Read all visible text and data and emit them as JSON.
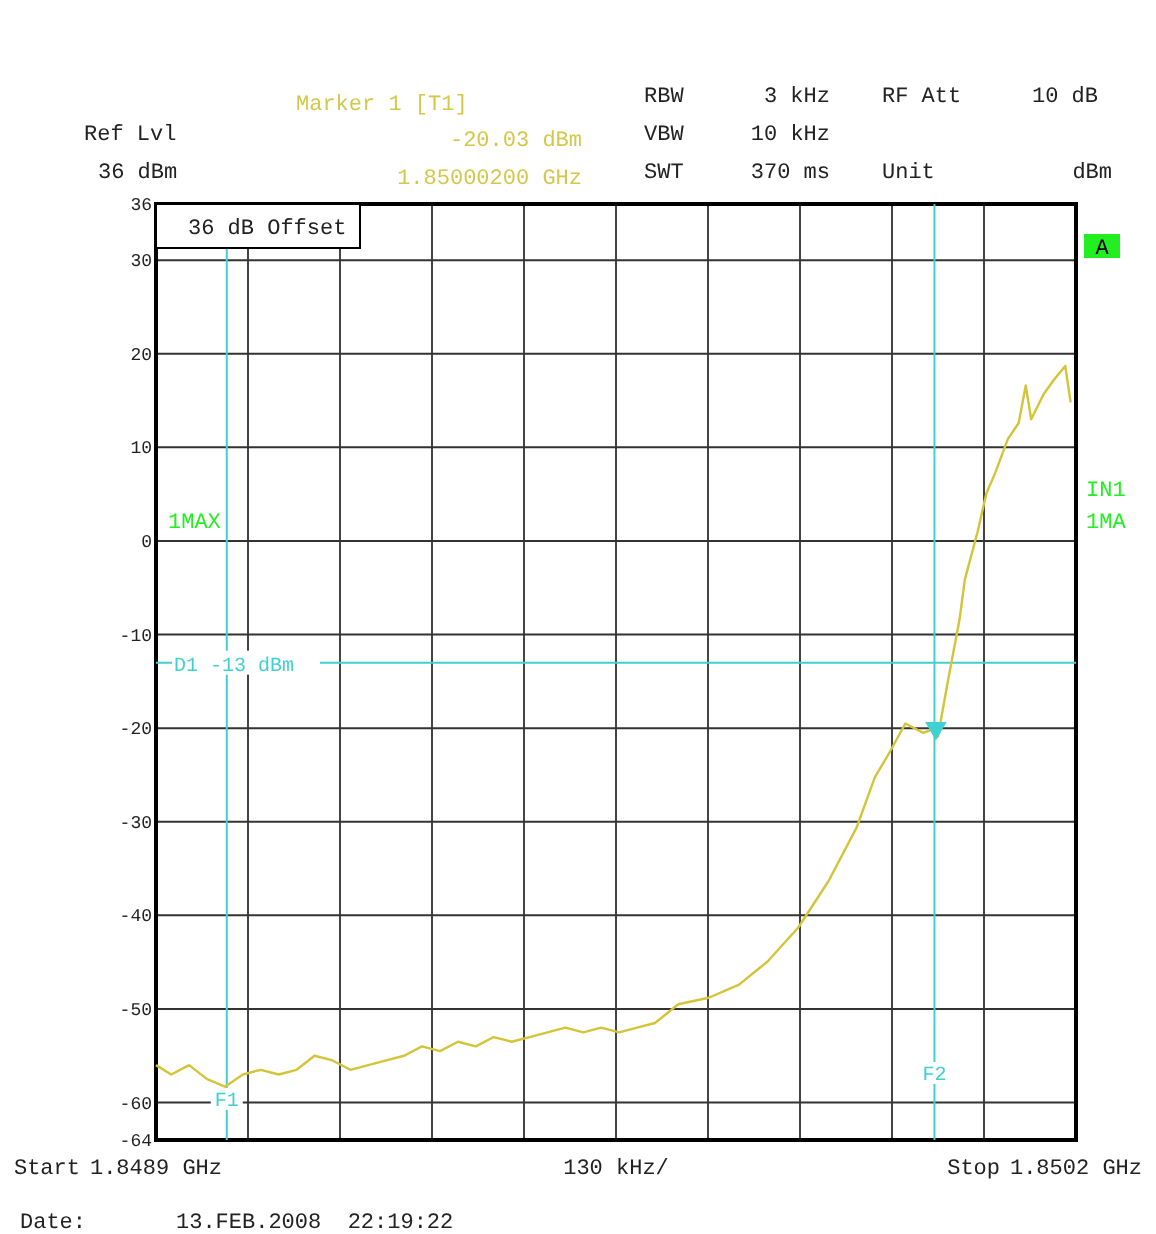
{
  "chart_data": {
    "type": "line",
    "x": [
      1.8489,
      1.8489215,
      1.8489468,
      1.8489722,
      1.8489975,
      1.8490228,
      1.8490481,
      1.8490734,
      1.8490987,
      1.849124,
      1.8491494,
      1.8491747,
      1.8492,
      1.8492253,
      1.8492506,
      1.8492759,
      1.8493013,
      1.8493266,
      1.8493519,
      1.8493772,
      1.8494025,
      1.8494278,
      1.8494532,
      1.8494785,
      1.8495038,
      1.8495291,
      1.8495544,
      1.8495797,
      1.8496051,
      1.849638,
      1.849681,
      1.849724,
      1.8497645,
      1.8498076,
      1.8498506,
      1.8498901,
      1.849916,
      1.8499335,
      1.8499589,
      1.8499842,
      1.850002,
      1.850005,
      1.8500177,
      1.8500354,
      1.850043,
      1.8500607,
      1.8500734,
      1.850086,
      1.8501038,
      1.850119,
      1.850129,
      1.8501367,
      1.8501544,
      1.8501696,
      1.8501848,
      1.8501924
    ],
    "series": [
      {
        "color": "#d4c438",
        "values": [
          -56,
          -57,
          -56,
          -57.5,
          -58.3,
          -57,
          -56.5,
          -57,
          -56.5,
          -55,
          -55.5,
          -56.5,
          -56,
          -55.5,
          -55,
          -54,
          -54.5,
          -53.5,
          -54,
          -53,
          -53.5,
          -53,
          -52.5,
          -52,
          -52.5,
          -52,
          -52.5,
          -52,
          -51.5,
          -49.5,
          -48.8,
          -47.4,
          -44.9,
          -41.3,
          -36.3,
          -30.6,
          -25.2,
          -23,
          -19.5,
          -20.5,
          -20,
          -20.9,
          -15.5,
          -8.4,
          -4.1,
          0.9,
          5.1,
          7.3,
          10.9,
          12.6,
          16.6,
          13,
          15.7,
          17.3,
          18.7,
          14.8
        ]
      },
      {
        "type": "scatter",
        "x": [
          1.850002
        ],
        "values": [
          -20
        ],
        "color": "#40d0d0",
        "marker": "triangle"
      }
    ],
    "xlim": [
      1.8489,
      1.8502
    ],
    "xticks": [
      {
        "value": 1.8489,
        "label": "1.8489 GHz"
      },
      {
        "value": 1.84903,
        "label": null
      },
      {
        "value": 1.84916,
        "label": null
      },
      {
        "value": 1.84929,
        "label": null
      },
      {
        "value": 1.84942,
        "label": null
      },
      {
        "value": 1.84955,
        "label": null
      },
      {
        "value": 1.84968,
        "label": null
      },
      {
        "value": 1.84981,
        "label": null
      },
      {
        "value": 1.84994,
        "label": null
      },
      {
        "value": 1.85007,
        "label": null
      },
      {
        "value": 1.8502,
        "label": "1.8502 GHz"
      }
    ],
    "ylim": [
      -64,
      36
    ],
    "yticks": [
      -64,
      -60,
      -50,
      -40,
      -30,
      -20,
      -10,
      0,
      10,
      20,
      30,
      36
    ],
    "xlabel": "130 kHz/",
    "grid": true,
    "marker": "none",
    "line_style": "solid",
    "ref_lines": [
      {
        "axis": "x",
        "value": 1.849,
        "label": "F1",
        "color": "#40d0d0"
      },
      {
        "axis": "x",
        "value": 1.85,
        "label": "F2",
        "color": "#40d0d0"
      },
      {
        "axis": "y",
        "value": -13,
        "label": "D1 -13 dBm",
        "color": "#40d0d0"
      }
    ],
    "annotations": [
      "Marker 1 [T1]",
      "-20.03 dBm",
      "1.85000200 GHz",
      "Ref Lvl",
      "36 dBm",
      "RBW",
      "3 kHz",
      "VBW",
      "10 kHz",
      "SWT",
      "370 ms",
      "RF Att",
      "10 dB",
      "Unit",
      "dBm",
      "36 dB Offset",
      "A",
      "1MAX",
      "IN1",
      "1MA",
      "Start",
      "Stop",
      "Date:",
      "13.FEB.2008  22:19:22"
    ]
  }
}
